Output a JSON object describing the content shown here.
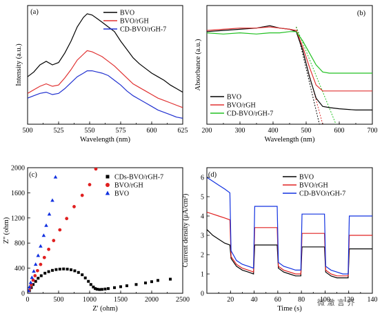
{
  "watermark": "微 澈 言 芥",
  "chart_data": [
    {
      "id": "a",
      "type": "line",
      "panel_label": "(a)",
      "xlabel": "Wavelength (nm)",
      "ylabel": "Intensity (a.u.)",
      "xlim": [
        500,
        625
      ],
      "xticks": [
        500,
        525,
        550,
        575,
        600,
        625
      ],
      "ylim": [
        0,
        1
      ],
      "show_yticks": false,
      "legend": "top-right",
      "series": [
        {
          "name": "BVO",
          "color": "#000000",
          "x": [
            500,
            505,
            510,
            515,
            520,
            525,
            530,
            535,
            540,
            545,
            548,
            552,
            556,
            560,
            565,
            570,
            575,
            580,
            585,
            590,
            595,
            600,
            605,
            610,
            615,
            620,
            625
          ],
          "y": [
            0.4,
            0.44,
            0.5,
            0.53,
            0.5,
            0.52,
            0.6,
            0.7,
            0.82,
            0.9,
            0.93,
            0.92,
            0.89,
            0.86,
            0.82,
            0.78,
            0.7,
            0.63,
            0.56,
            0.51,
            0.47,
            0.43,
            0.4,
            0.37,
            0.33,
            0.3,
            0.27
          ]
        },
        {
          "name": "BVO/rGH",
          "color": "#e03030",
          "x": [
            500,
            505,
            510,
            515,
            520,
            525,
            530,
            535,
            540,
            545,
            548,
            552,
            556,
            560,
            565,
            570,
            575,
            580,
            585,
            590,
            595,
            600,
            605,
            610,
            615,
            620,
            625
          ],
          "y": [
            0.26,
            0.29,
            0.32,
            0.34,
            0.32,
            0.33,
            0.39,
            0.46,
            0.54,
            0.59,
            0.62,
            0.61,
            0.59,
            0.57,
            0.53,
            0.49,
            0.44,
            0.39,
            0.34,
            0.31,
            0.28,
            0.25,
            0.22,
            0.2,
            0.18,
            0.16,
            0.14
          ]
        },
        {
          "name": "CD-BVO/rGH-7",
          "color": "#2030d0",
          "x": [
            500,
            505,
            510,
            515,
            520,
            525,
            530,
            535,
            540,
            545,
            548,
            552,
            556,
            560,
            565,
            570,
            575,
            580,
            585,
            590,
            595,
            600,
            605,
            610,
            615,
            620,
            625
          ],
          "y": [
            0.22,
            0.24,
            0.26,
            0.27,
            0.25,
            0.26,
            0.3,
            0.35,
            0.4,
            0.43,
            0.45,
            0.45,
            0.44,
            0.43,
            0.41,
            0.37,
            0.33,
            0.28,
            0.24,
            0.21,
            0.18,
            0.15,
            0.12,
            0.1,
            0.08,
            0.06,
            0.05
          ]
        }
      ]
    },
    {
      "id": "b",
      "type": "line",
      "panel_label": "(b)",
      "xlabel": "Wavelength (nm)",
      "ylabel": "Absorbance (a.u.)",
      "xlim": [
        200,
        700
      ],
      "xticks": [
        200,
        300,
        400,
        500,
        600,
        700
      ],
      "ylim": [
        0,
        1
      ],
      "show_yticks": false,
      "legend": "bottom-left",
      "series": [
        {
          "name": "BVO",
          "color": "#000000",
          "x": [
            200,
            250,
            300,
            350,
            390,
            420,
            450,
            470,
            490,
            510,
            530,
            550,
            570,
            600,
            650,
            700
          ],
          "y": [
            0.78,
            0.79,
            0.8,
            0.81,
            0.83,
            0.81,
            0.8,
            0.78,
            0.62,
            0.4,
            0.22,
            0.15,
            0.14,
            0.13,
            0.12,
            0.12
          ]
        },
        {
          "name": "BVO/rGH",
          "color": "#e03030",
          "x": [
            200,
            250,
            300,
            350,
            390,
            420,
            450,
            470,
            490,
            510,
            530,
            550,
            570,
            600,
            650,
            700
          ],
          "y": [
            0.79,
            0.8,
            0.81,
            0.81,
            0.82,
            0.81,
            0.8,
            0.79,
            0.65,
            0.48,
            0.33,
            0.28,
            0.28,
            0.28,
            0.28,
            0.28
          ]
        },
        {
          "name": "CD-BVO/rGH-7",
          "color": "#20c020",
          "x": [
            200,
            250,
            300,
            350,
            390,
            420,
            450,
            470,
            490,
            510,
            530,
            550,
            570,
            600,
            650,
            700
          ],
          "y": [
            0.77,
            0.76,
            0.77,
            0.76,
            0.77,
            0.77,
            0.78,
            0.78,
            0.7,
            0.6,
            0.5,
            0.44,
            0.43,
            0.43,
            0.43,
            0.43
          ]
        }
      ],
      "tangents": [
        {
          "color": "#000000",
          "x": [
            470,
            540
          ],
          "y": [
            0.82,
            0.0
          ]
        },
        {
          "color": "#e03030",
          "x": [
            470,
            550
          ],
          "y": [
            0.82,
            0.0
          ]
        },
        {
          "color": "#20c020",
          "x": [
            470,
            590
          ],
          "y": [
            0.82,
            0.0
          ]
        }
      ]
    },
    {
      "id": "c",
      "type": "scatter",
      "panel_label": "(c)",
      "xlabel": "Z' (ohm)",
      "ylabel": "Z'' (ohm)",
      "xlim": [
        0,
        2500
      ],
      "xticks": [
        0,
        500,
        1000,
        1500,
        2000,
        2500
      ],
      "ylim": [
        0,
        2000
      ],
      "yticks": [
        0,
        400,
        800,
        1200,
        1600,
        2000
      ],
      "legend": "top-right",
      "series": [
        {
          "name": "CDs-BVO/rGH-7",
          "color": "#000000",
          "marker": "square",
          "x": [
            30,
            60,
            90,
            130,
            170,
            220,
            280,
            340,
            400,
            460,
            520,
            580,
            640,
            700,
            760,
            820,
            880,
            930,
            980,
            1020,
            1060,
            1090,
            1120,
            1160,
            1200,
            1250,
            1300,
            1400,
            1500,
            1600,
            1750,
            1900,
            2000,
            2100,
            2300
          ],
          "y": [
            40,
            90,
            140,
            190,
            240,
            280,
            320,
            345,
            365,
            378,
            385,
            388,
            385,
            375,
            358,
            332,
            295,
            245,
            190,
            140,
            100,
            75,
            65,
            60,
            62,
            68,
            75,
            90,
            105,
            120,
            140,
            165,
            185,
            205,
            225
          ]
        },
        {
          "name": "BVO/rGH",
          "color": "#e02020",
          "marker": "circle",
          "x": [
            20,
            40,
            60,
            90,
            120,
            160,
            210,
            270,
            340,
            420,
            520,
            630,
            750,
            880,
            1000,
            1100
          ],
          "y": [
            40,
            90,
            140,
            210,
            280,
            360,
            460,
            570,
            700,
            840,
            1010,
            1190,
            1380,
            1560,
            1730,
            1980
          ]
        },
        {
          "name": "BVO",
          "color": "#1030e0",
          "marker": "triangle",
          "x": [
            15,
            30,
            50,
            70,
            100,
            130,
            170,
            210,
            260,
            300,
            350,
            400,
            450
          ],
          "y": [
            40,
            100,
            170,
            250,
            350,
            460,
            600,
            750,
            920,
            1080,
            1260,
            1480,
            1850
          ]
        }
      ]
    },
    {
      "id": "d",
      "type": "line",
      "panel_label": "(d)",
      "xlabel": "Time (s)",
      "ylabel": "Current density (μA/cm²)",
      "xlim": [
        0,
        140
      ],
      "xticks": [
        20,
        40,
        60,
        80,
        100,
        120,
        140
      ],
      "ylim": [
        0,
        6.5
      ],
      "yticks": [
        0,
        1,
        2,
        3,
        4,
        5,
        6
      ],
      "legend": "top-right",
      "series": [
        {
          "name": "BVO",
          "color": "#000000",
          "x": [
            0,
            5,
            10,
            15,
            19.5,
            20.5,
            25,
            30,
            35,
            39.5,
            40.5,
            45,
            50,
            55,
            59.5,
            60.5,
            65,
            70,
            75,
            79.5,
            80.5,
            85,
            90,
            95,
            99.5,
            100.5,
            105,
            110,
            115,
            119.5,
            120.5,
            125,
            130,
            135,
            140
          ],
          "y": [
            3.3,
            3.0,
            2.8,
            2.6,
            2.5,
            1.8,
            1.4,
            1.2,
            1.1,
            1.0,
            2.5,
            2.5,
            2.5,
            2.5,
            2.5,
            1.3,
            1.1,
            1.0,
            0.9,
            0.9,
            2.4,
            2.4,
            2.4,
            2.4,
            2.4,
            1.1,
            0.9,
            0.8,
            0.8,
            0.8,
            2.3,
            2.3,
            2.3,
            2.3,
            2.3
          ]
        },
        {
          "name": "BVO/rGH",
          "color": "#e02020",
          "x": [
            0,
            5,
            10,
            15,
            19.5,
            20.5,
            25,
            30,
            35,
            39.5,
            40.5,
            45,
            50,
            55,
            59.5,
            60.5,
            65,
            70,
            75,
            79.5,
            80.5,
            85,
            90,
            95,
            99.5,
            100.5,
            105,
            110,
            115,
            119.5,
            120.5,
            125,
            130,
            135,
            140
          ],
          "y": [
            4.2,
            4.1,
            4.0,
            3.9,
            3.8,
            1.9,
            1.5,
            1.3,
            1.2,
            1.1,
            3.4,
            3.4,
            3.4,
            3.4,
            3.4,
            1.4,
            1.2,
            1.1,
            1.0,
            1.0,
            3.1,
            3.1,
            3.1,
            3.1,
            3.1,
            1.2,
            1.0,
            0.9,
            0.9,
            0.9,
            3.0,
            3.0,
            3.0,
            3.0,
            3.0
          ]
        },
        {
          "name": "CD-BVO/rGH-7",
          "color": "#1030e0",
          "x": [
            0,
            5,
            10,
            15,
            19.5,
            20.5,
            25,
            30,
            35,
            39.5,
            40.5,
            45,
            50,
            55,
            59.5,
            60.5,
            65,
            70,
            75,
            79.5,
            80.5,
            85,
            90,
            95,
            99.5,
            100.5,
            105,
            110,
            115,
            119.5,
            120.5,
            125,
            130,
            135,
            140
          ],
          "y": [
            6.0,
            5.8,
            5.6,
            5.4,
            5.2,
            2.2,
            1.7,
            1.5,
            1.4,
            1.3,
            4.5,
            4.5,
            4.5,
            4.5,
            4.5,
            1.6,
            1.4,
            1.3,
            1.2,
            1.2,
            4.1,
            4.1,
            4.1,
            4.1,
            4.1,
            1.4,
            1.2,
            1.1,
            1.0,
            1.0,
            4.0,
            4.0,
            4.0,
            4.0,
            4.0
          ]
        }
      ]
    }
  ]
}
